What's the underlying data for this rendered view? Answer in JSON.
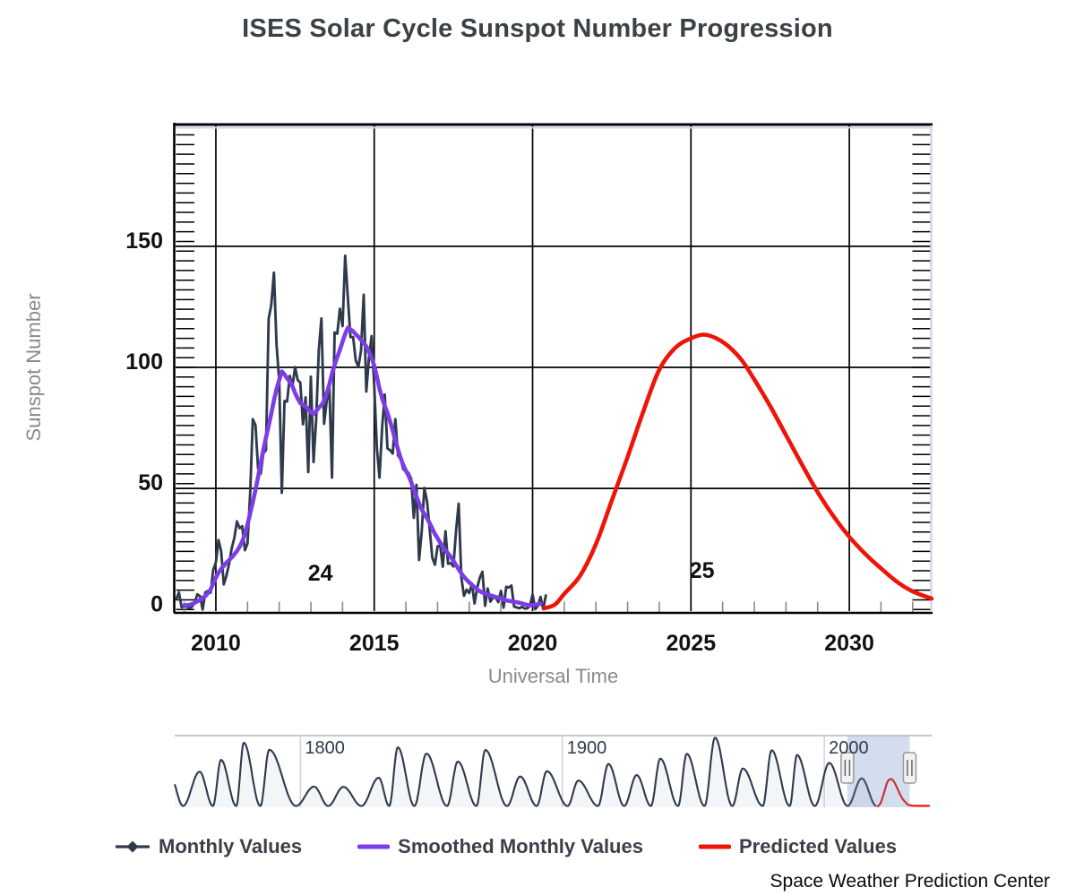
{
  "title": "ISES Solar Cycle Sunspot Number Progression",
  "credit": "Space Weather Prediction Center",
  "colors": {
    "monthly": "#2f3a4d",
    "smoothed": "#7c3ce8",
    "predicted": "#ee1408",
    "grid": "#000000",
    "minor_x_tick": "#8a8a8a",
    "axis_accent": "#ccd6eb",
    "selection_mask": "rgba(102,133,194,0.28)",
    "navigator_border": "#c8c8c8",
    "navigator_grid": "#d0d3d7",
    "navigator_label": "#2f3a4d",
    "handle_fill": "#f2f2f2",
    "handle_stroke": "#999999",
    "tick_label": "#111111"
  },
  "legend": [
    {
      "label": "Monthly Values"
    },
    {
      "label": "Smoothed Monthly Values"
    },
    {
      "label": "Predicted Values"
    }
  ],
  "chart_data": {
    "type": "line",
    "title": "ISES Solar Cycle Sunspot Number Progression",
    "xlabel": "Universal Time",
    "ylabel": "Sunspot Number",
    "x_range": [
      2008.7,
      2032.6
    ],
    "y_range": [
      -1,
      201
    ],
    "x_ticks": [
      2010,
      2015,
      2020,
      2025,
      2030
    ],
    "y_ticks": [
      0,
      50,
      100,
      150
    ],
    "x_minor_step": 1,
    "y_minor_step": 4,
    "grid": true,
    "legend_position": "bottom",
    "annotations": [
      {
        "text": "24",
        "x": 2013.3,
        "y": 12
      },
      {
        "text": "25",
        "x": 2025.35,
        "y": 13
      }
    ],
    "series": [
      {
        "id": "monthly",
        "name": "Monthly Values",
        "color_key": "monthly",
        "start": 2008.75,
        "step": 0.0833333,
        "values": [
          4.2,
          7.1,
          1.0,
          1.3,
          1.2,
          0.6,
          1.2,
          2.9,
          6.3,
          5.5,
          0.0,
          7.1,
          7.7,
          6.9,
          16.3,
          19.5,
          28.7,
          24.0,
          10.4,
          13.9,
          18.8,
          25.2,
          29.6,
          36.4,
          33.6,
          34.4,
          24.5,
          27.3,
          48.3,
          78.6,
          76.1,
          58.2,
          56.1,
          64.5,
          65.8,
          120.1,
          125.7,
          139.1,
          109.3,
          94.4,
          48.2,
          86.1,
          85.9,
          96.5,
          92.0,
          100.1,
          94.8,
          93.7,
          76.5,
          87.6,
          56.8,
          96.1,
          60.9,
          78.3,
          107.3,
          120.2,
          76.7,
          86.2,
          91.8,
          54.5,
          114.4,
          113.9,
          124.2,
          117.0,
          146.1,
          128.7,
          112.5,
          112.5,
          102.9,
          100.2,
          106.9,
          130.0,
          90.0,
          103.6,
          112.9,
          93.0,
          66.7,
          54.5,
          75.3,
          88.8,
          66.5,
          65.8,
          64.4,
          78.6,
          63.6,
          62.2,
          58.0,
          57.0,
          56.4,
          54.1,
          37.9,
          51.5,
          20.5,
          32.4,
          50.2,
          44.6,
          33.4,
          21.4,
          18.5,
          26.1,
          26.4,
          17.7,
          32.3,
          18.9,
          19.2,
          17.8,
          32.6,
          43.7,
          13.2,
          5.7,
          8.2,
          6.8,
          10.7,
          2.5,
          8.9,
          13.1,
          15.6,
          1.6,
          8.7,
          3.3,
          4.9,
          4.9,
          3.1,
          7.7,
          0.8,
          9.4,
          9.1,
          9.9,
          1.2,
          0.9,
          0.5,
          1.1,
          0.4,
          0.5,
          1.5,
          6.2,
          0.2,
          1.5,
          5.2,
          0.2,
          5.8
        ]
      },
      {
        "id": "smoothed",
        "name": "Smoothed Monthly Values",
        "color_key": "smoothed",
        "start": 2009.0,
        "step": 0.0833333,
        "values": [
          1.7,
          1.8,
          1.9,
          2.3,
          2.8,
          3.4,
          4.0,
          4.8,
          5.6,
          6.8,
          8.3,
          10.8,
          13.2,
          15.2,
          16.8,
          18.0,
          19.4,
          20.4,
          21.5,
          22.8,
          24.2,
          25.9,
          28.1,
          31.1,
          35.1,
          39.8,
          44.4,
          49.4,
          54.8,
          60.2,
          66.0,
          71.0,
          75.9,
          80.9,
          86.4,
          91.1,
          94.8,
          98.3,
          97.1,
          95.4,
          94.1,
          92.3,
          89.4,
          87.2,
          85.2,
          84.6,
          83.9,
          82.6,
          81.5,
          80.8,
          81.9,
          83.4,
          84.4,
          86.2,
          89.1,
          93.0,
          97.4,
          101.0,
          104.2,
          107.2,
          110.6,
          113.8,
          116.4,
          115.7,
          114.9,
          113.6,
          112.6,
          111.3,
          110.2,
          108.6,
          106.4,
          104.0,
          100.7,
          96.2,
          91.2,
          87.2,
          84.0,
          81.2,
          77.7,
          73.9,
          69.9,
          66.1,
          62.6,
          59.7,
          57.3,
          55.4,
          52.6,
          49.5,
          46.7,
          43.9,
          41.3,
          39.4,
          37.7,
          35.7,
          33.4,
          31.2,
          29.4,
          27.6,
          25.8,
          24.4,
          23.2,
          21.7,
          20.1,
          18.4,
          16.6,
          14.9,
          13.5,
          12.3,
          11.2,
          10.2,
          9.2,
          8.3,
          7.6,
          7.0,
          6.6,
          6.2,
          5.8,
          5.5,
          5.2,
          4.9,
          4.5,
          4.1,
          3.8,
          3.6,
          3.4,
          3.2,
          3.0,
          2.8,
          2.5,
          2.2,
          1.9,
          1.8,
          1.8,
          2.0,
          2.2,
          2.4
        ]
      },
      {
        "id": "predicted",
        "name": "Predicted Values",
        "color_key": "predicted",
        "points": [
          [
            2020.35,
            0.5
          ],
          [
            2020.7,
            2.0
          ],
          [
            2021.0,
            6.5
          ],
          [
            2021.5,
            14.0
          ],
          [
            2022.0,
            27.0
          ],
          [
            2022.5,
            45.0
          ],
          [
            2023.0,
            63.0
          ],
          [
            2023.5,
            82.0
          ],
          [
            2024.0,
            99.0
          ],
          [
            2024.5,
            108.0
          ],
          [
            2025.0,
            112.0
          ],
          [
            2025.4,
            113.5
          ],
          [
            2025.8,
            112.0
          ],
          [
            2026.2,
            108.5
          ],
          [
            2026.6,
            103.0
          ],
          [
            2027.0,
            95.0
          ],
          [
            2027.5,
            84.0
          ],
          [
            2028.0,
            72.0
          ],
          [
            2028.5,
            60.0
          ],
          [
            2029.0,
            48.5
          ],
          [
            2029.5,
            38.5
          ],
          [
            2030.0,
            30.0
          ],
          [
            2030.5,
            23.0
          ],
          [
            2031.0,
            17.0
          ],
          [
            2031.5,
            11.5
          ],
          [
            2032.0,
            7.5
          ],
          [
            2032.6,
            4.5
          ]
        ],
        "tail_points": [
          [
            2034.0,
            2.5
          ],
          [
            2036.0,
            2.2
          ],
          [
            2038.0,
            2.2
          ],
          [
            2040.0,
            2.2
          ]
        ]
      }
    ],
    "navigator": {
      "x_range": [
        1752,
        2041
      ],
      "ticks": [
        1800,
        1900,
        2000
      ],
      "selection": [
        2008.8,
        2032.6
      ],
      "value_max": 290,
      "navy_end": 2019.9,
      "red_start": 2020.3,
      "cycles": [
        [
          1744.0,
          1750.3,
          125
        ],
        [
          1755.2,
          1761.5,
          144
        ],
        [
          1766.6,
          1769.7,
          193
        ],
        [
          1775.5,
          1778.4,
          264
        ],
        [
          1784.7,
          1788.1,
          235
        ],
        [
          1798.3,
          1805.2,
          82
        ],
        [
          1810.6,
          1816.4,
          81
        ],
        [
          1823.3,
          1829.9,
          119
        ],
        [
          1833.9,
          1837.2,
          245
        ],
        [
          1843.5,
          1848.1,
          219
        ],
        [
          1856.0,
          1860.1,
          186
        ],
        [
          1867.2,
          1870.6,
          234
        ],
        [
          1878.9,
          1883.9,
          124
        ],
        [
          1890.2,
          1894.1,
          146
        ],
        [
          1902.0,
          1906.1,
          107
        ],
        [
          1913.6,
          1917.6,
          176
        ],
        [
          1923.6,
          1928.4,
          130
        ],
        [
          1933.8,
          1937.4,
          198
        ],
        [
          1944.2,
          1947.5,
          218
        ],
        [
          1954.3,
          1958.3,
          285
        ],
        [
          1964.9,
          1968.9,
          157
        ],
        [
          1976.5,
          1979.9,
          233
        ],
        [
          1986.8,
          1989.6,
          213
        ],
        [
          1996.4,
          2001.9,
          180
        ],
        [
          2008.9,
          2014.3,
          116
        ]
      ]
    }
  }
}
